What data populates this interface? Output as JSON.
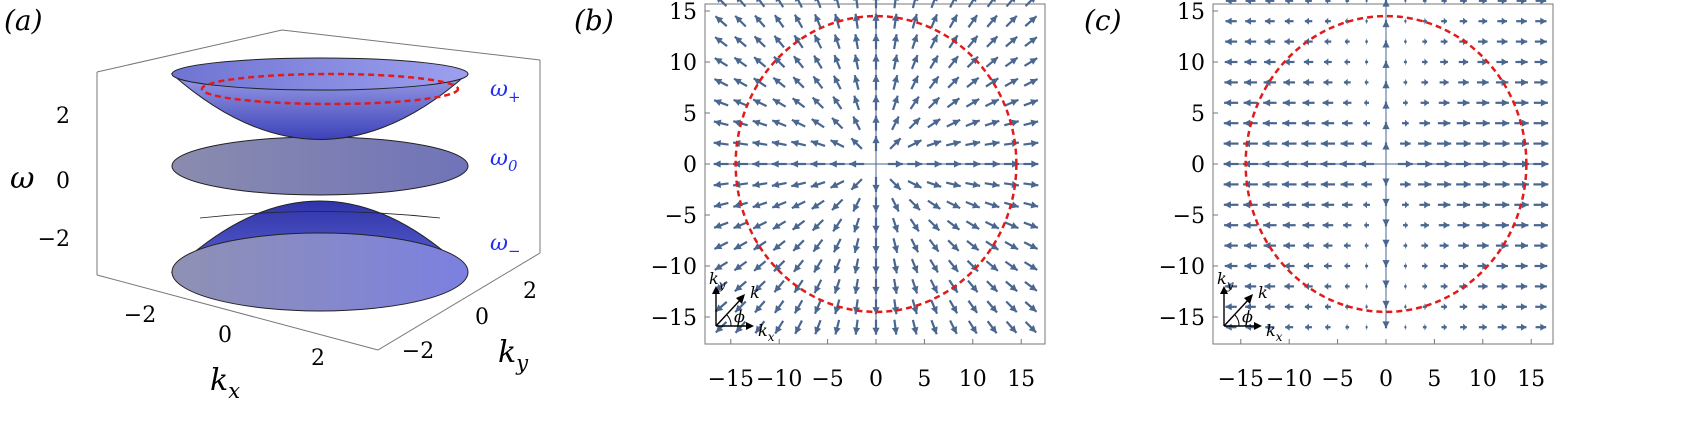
{
  "panels": {
    "a": {
      "label": "(a)",
      "ylabel": "ω",
      "xlabel": "k",
      "xlabel_sub": "x",
      "klabel": "k",
      "klabel_sub": "y",
      "z_ticks": [
        "2",
        "0",
        "−2"
      ],
      "x_ticks": [
        "−2",
        "0",
        "2"
      ],
      "y_ticks": [
        "2",
        "0",
        "−2"
      ],
      "bands": [
        {
          "name": "ω",
          "sub": "+"
        },
        {
          "name": "ω",
          "sub": "0"
        },
        {
          "name": "ω",
          "sub": "−"
        }
      ]
    },
    "b": {
      "label": "(b)",
      "x_ticks": [
        "−15",
        "−10",
        "−5",
        "0",
        "5",
        "10",
        "15"
      ],
      "y_ticks": [
        "15",
        "10",
        "5",
        "0",
        "−5",
        "−10",
        "−15"
      ],
      "inset": {
        "k": "k",
        "ky": "k",
        "ky_sub": "y",
        "kx": "k",
        "kx_sub": "x",
        "phi": "ϕ"
      }
    },
    "c": {
      "label": "(c)",
      "x_ticks": [
        "−15",
        "−10",
        "−5",
        "0",
        "5",
        "10",
        "15"
      ],
      "y_ticks": [
        "15",
        "10",
        "5",
        "0",
        "−5",
        "−10",
        "−15"
      ],
      "inset": {
        "k": "k",
        "ky": "k",
        "ky_sub": "y",
        "kx": "k",
        "kx_sub": "x",
        "phi": "ϕ"
      }
    }
  },
  "chart_data": [
    {
      "type": "surface3d",
      "panel": "a",
      "surfaces": [
        "ω+ (upper paraboloid)",
        "ω0 (flat disk)",
        "ω− (lower paraboloid)"
      ],
      "xlim": [
        -3,
        3
      ],
      "ylim": [
        -3,
        3
      ],
      "zlim": [
        -3.5,
        3.5
      ],
      "colors": {
        "surface": "#7b7fd6",
        "contour": "#e21a1a"
      }
    },
    {
      "type": "vector_field",
      "panel": "b",
      "field": "radial",
      "xlim": [
        -16,
        16
      ],
      "ylim": [
        -16,
        16
      ],
      "grid_spacing": 2,
      "circle_radius": 14.5,
      "colors": {
        "arrow": "#4a6790",
        "circle": "#e21a1a"
      }
    },
    {
      "type": "vector_field",
      "panel": "c",
      "field": "horizontal",
      "xlim": [
        -16,
        16
      ],
      "ylim": [
        -16,
        16
      ],
      "grid_spacing": 2,
      "circle_radius": 14.5,
      "colors": {
        "arrow": "#4a6790",
        "circle": "#e21a1a"
      }
    }
  ]
}
